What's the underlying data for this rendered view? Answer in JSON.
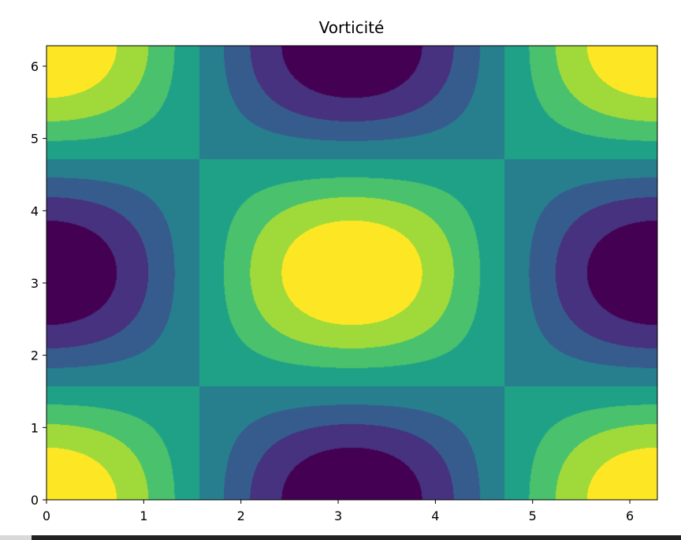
{
  "chart_data": {
    "type": "heatmap",
    "subtype": "filled-contour",
    "title": "Vorticité",
    "xlabel": "",
    "ylabel": "",
    "function": "cos(x)*cos(y)",
    "colormap": "viridis",
    "xlim": [
      0,
      6.283
    ],
    "ylim": [
      0,
      6.283
    ],
    "xticks": [
      0,
      1,
      2,
      3,
      4,
      5,
      6
    ],
    "yticks": [
      0,
      1,
      2,
      3,
      4,
      5,
      6
    ],
    "xtick_labels": [
      "0",
      "1",
      "2",
      "3",
      "4",
      "5",
      "6"
    ],
    "ytick_labels": [
      "0",
      "1",
      "2",
      "3",
      "4",
      "5",
      "6"
    ],
    "levels": [
      -1.0,
      -0.75,
      -0.5,
      -0.25,
      0.0,
      0.25,
      0.5,
      0.75,
      1.0
    ],
    "level_colors": [
      "#440154",
      "#46327e",
      "#365c8d",
      "#277f8e",
      "#1fa187",
      "#4ac16d",
      "#9fda3a",
      "#fde725"
    ],
    "grid": false,
    "legend": "none"
  }
}
